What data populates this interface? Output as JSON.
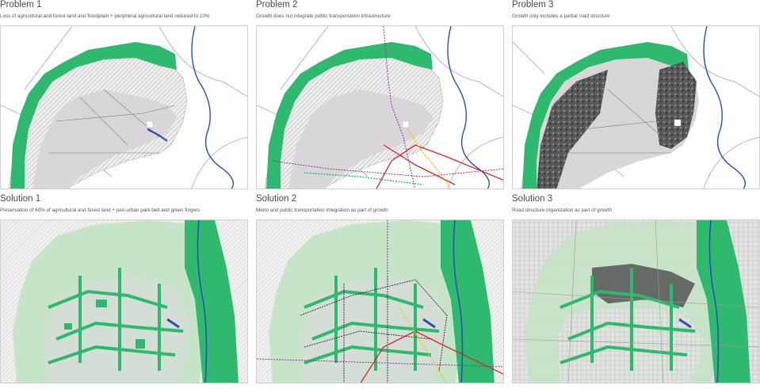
{
  "panels": [
    {
      "title": "Problem 1",
      "subtitle": "Loss of agricultural and forest land and floodplain + peripheral agricultural land reduced to 10%"
    },
    {
      "title": "Problem 2",
      "subtitle": "Growth does not integrate public transportation infrastructure"
    },
    {
      "title": "Problem 3",
      "subtitle": "Growth only includes a partial road structure"
    },
    {
      "title": "Solution 1",
      "subtitle": "Preservation of 60% of agricultural and forest land + peri-urban park belt and green fingers"
    },
    {
      "title": "Solution 2",
      "subtitle": "Metro and public transportation integration as part of growth"
    },
    {
      "title": "Solution 3",
      "subtitle": "Road structure organization as part of growth"
    }
  ],
  "colors": {
    "green": "#2fb96f",
    "light_green": "#c6e4c8",
    "grey_city": "#d9d6d9",
    "dark_grey": "#555555",
    "river": "#2b4fb3",
    "metro_red": "#d9262b",
    "metro_purple": "#8a2f88",
    "metro_yellow": "#e6c21f"
  }
}
